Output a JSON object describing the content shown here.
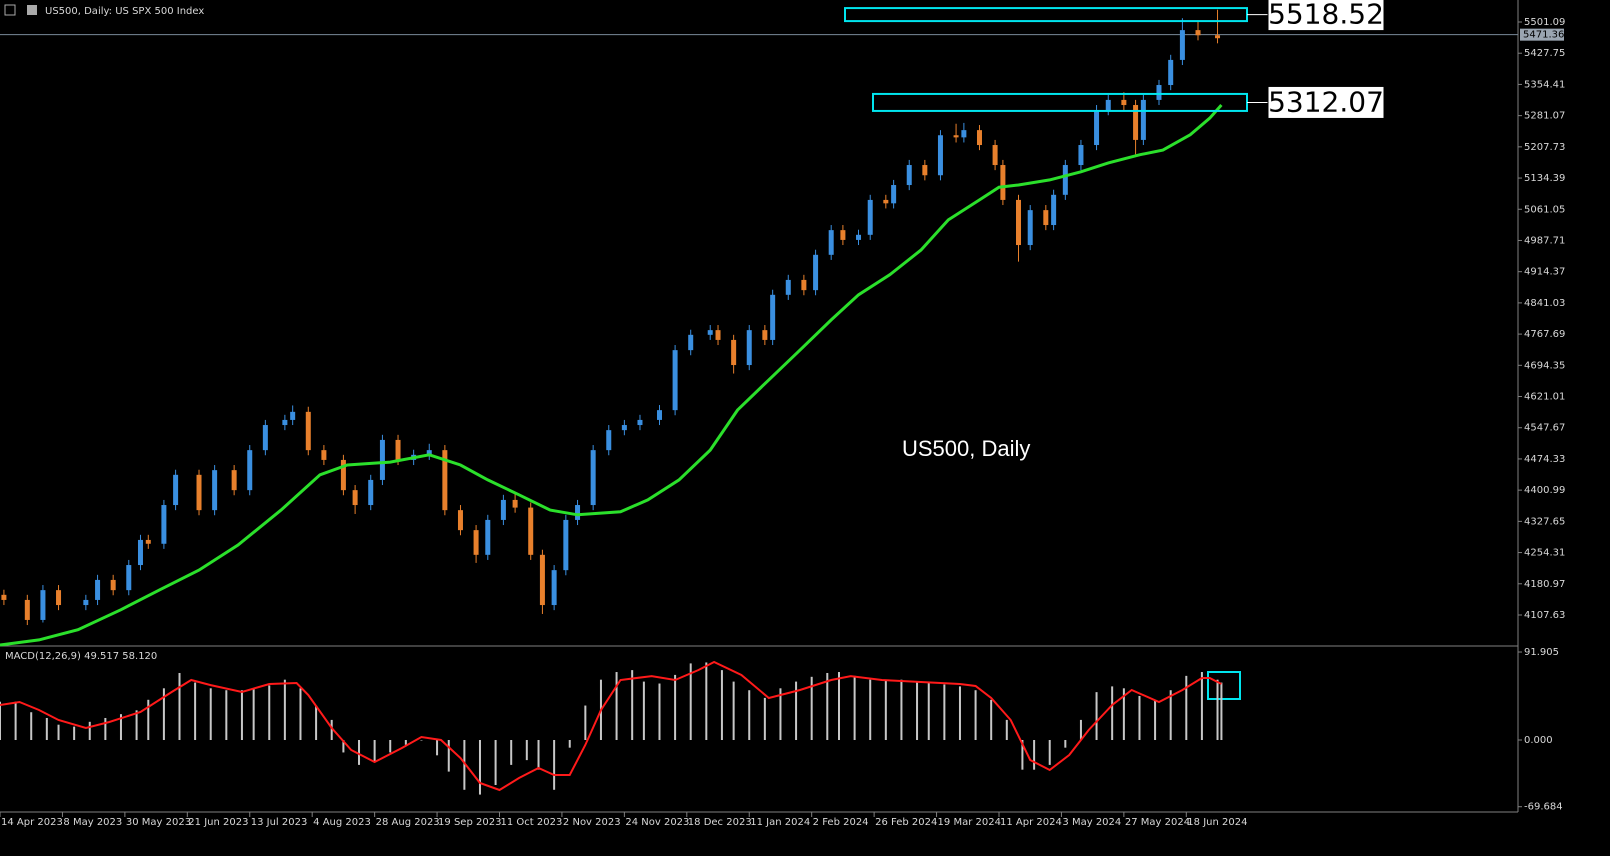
{
  "chart_data": [
    {
      "type": "candlestick",
      "title": "US500, Daily:  US SPX 500 Index",
      "watermark": "US500, Daily",
      "up_color": "#3a8fe0",
      "down_color": "#e8802c",
      "candles": {
        "x": [
          1,
          7,
          11,
          15,
          22,
          25,
          29,
          33,
          36,
          38,
          42,
          45,
          51,
          55,
          60,
          64,
          68,
          73,
          75,
          79,
          83,
          88,
          91,
          95,
          98,
          102,
          106,
          110,
          114,
          118,
          122,
          125,
          129,
          132,
          136,
          139,
          142,
          145,
          148,
          152,
          156,
          160,
          164,
          169,
          173,
          177,
          182,
          184,
          188,
          192,
          196,
          198,
          202,
          206,
          209,
          213,
          216,
          220,
          223,
          227,
          229,
          233,
          237,
          241,
          245,
          247,
          251,
          255,
          257,
          261,
          264,
          268,
          270,
          273,
          277,
          281,
          284,
          288,
          291,
          293,
          297,
          300,
          303,
          307,
          312
        ],
        "open": [
          4155,
          4143,
          4096,
          4166,
          4131,
          4143,
          4190,
          4166,
          4225,
          4284,
          4275,
          4366,
          4437,
          4354,
          4448,
          4401,
          4495,
          4554,
          4566,
          4585,
          4495,
          4472,
          4401,
          4366,
          4425,
          4519,
          4472,
          4484,
          4495,
          4354,
          4307,
          4249,
          4331,
          4378,
          4360,
          4249,
          4131,
          4213,
          4331,
          4366,
          4495,
          4542,
          4554,
          4566,
          4589,
          4730,
          4766,
          4777,
          4754,
          4695,
          4777,
          4754,
          4860,
          4895,
          4871,
          4954,
          5012,
          4989,
          5001,
          5083,
          5075,
          5118,
          5165,
          5141,
          5235,
          5230,
          5247,
          5212,
          5165,
          5083,
          4977,
          5059,
          5024,
          5095,
          5165,
          5212,
          5294,
          5318,
          5306,
          5224,
          5318,
          5353,
          5412,
          5482,
          5470
        ],
        "high": [
          4167,
          4155,
          4178,
          4178,
          4155,
          4202,
          4202,
          4237,
          4296,
          4296,
          4378,
          4449,
          4449,
          4460,
          4460,
          4507,
          4566,
          4578,
          4600,
          4597,
          4507,
          4484,
          4413,
          4437,
          4531,
          4531,
          4496,
          4510,
          4507,
          4366,
          4319,
          4343,
          4390,
          4395,
          4372,
          4261,
          4225,
          4343,
          4378,
          4507,
          4554,
          4566,
          4578,
          4601,
          4742,
          4778,
          4789,
          4789,
          4766,
          4789,
          4789,
          4872,
          4907,
          4907,
          4966,
          5024,
          5024,
          5013,
          5095,
          5095,
          5130,
          5177,
          5177,
          5247,
          5262,
          5264,
          5259,
          5224,
          5177,
          5095,
          5071,
          5071,
          5107,
          5177,
          5224,
          5306,
          5330,
          5336,
          5318,
          5330,
          5365,
          5424,
          5510,
          5505,
          5530
        ],
        "low": [
          4131,
          4084,
          4090,
          4119,
          4119,
          4131,
          4154,
          4154,
          4213,
          4263,
          4263,
          4354,
          4342,
          4342,
          4389,
          4389,
          4483,
          4542,
          4554,
          4483,
          4460,
          4389,
          4345,
          4354,
          4413,
          4460,
          4460,
          4472,
          4342,
          4295,
          4230,
          4237,
          4319,
          4348,
          4237,
          4110,
          4119,
          4201,
          4319,
          4354,
          4483,
          4530,
          4542,
          4554,
          4577,
          4718,
          4754,
          4742,
          4675,
          4683,
          4742,
          4742,
          4848,
          4859,
          4859,
          4942,
          4977,
          4977,
          4989,
          5063,
          5063,
          5106,
          5129,
          5129,
          5218,
          5218,
          5200,
          5153,
          5071,
          4938,
          4965,
          5012,
          5012,
          5083,
          5153,
          5200,
          5282,
          5294,
          5190,
          5212,
          5306,
          5341,
          5400,
          5458,
          5451
        ],
        "close": [
          4143,
          4096,
          4166,
          4131,
          4143,
          4190,
          4166,
          4225,
          4284,
          4275,
          4366,
          4437,
          4354,
          4448,
          4401,
          4495,
          4554,
          4566,
          4585,
          4495,
          4472,
          4401,
          4366,
          4425,
          4519,
          4472,
          4484,
          4495,
          4354,
          4307,
          4249,
          4331,
          4378,
          4360,
          4249,
          4131,
          4213,
          4331,
          4366,
          4495,
          4542,
          4554,
          4566,
          4589,
          4730,
          4766,
          4777,
          4754,
          4695,
          4777,
          4754,
          4860,
          4895,
          4871,
          4954,
          5012,
          4989,
          5001,
          5083,
          5075,
          5118,
          5165,
          5141,
          5235,
          5230,
          5247,
          5212,
          5165,
          5083,
          4977,
          5059,
          5024,
          5095,
          5165,
          5212,
          5294,
          5318,
          5306,
          5224,
          5318,
          5353,
          5412,
          5482,
          5470,
          5463
        ]
      },
      "ma": {
        "color": "#2be02b",
        "x": [
          0,
          10,
          20,
          31,
          41,
          51,
          61,
          72,
          82,
          89,
          100,
          110,
          118,
          125,
          133,
          141,
          148,
          159,
          166,
          174,
          182,
          189,
          197,
          205,
          213,
          220,
          228,
          236,
          243,
          251,
          256,
          261,
          269,
          277,
          284,
          292,
          298,
          305,
          310,
          313
        ],
        "values": [
          4037,
          4049,
          4073,
          4120,
          4167,
          4213,
          4272,
          4354,
          4437,
          4460,
          4467,
          4484,
          4460,
          4425,
          4390,
          4354,
          4343,
          4350,
          4378,
          4425,
          4495,
          4589,
          4660,
          4730,
          4801,
          4860,
          4907,
          4965,
          5036,
          5083,
          5113,
          5118,
          5130,
          5149,
          5170,
          5189,
          5200,
          5236,
          5275,
          5306
        ]
      },
      "levels": [
        5518.52,
        5312.07
      ],
      "level_color": "#00e5ee",
      "last_price": 5471.36,
      "xlim": [
        0,
        389
      ],
      "ylim": [
        4037.1,
        5552.8
      ],
      "yticks": [
        5501.09,
        5427.75,
        5354.41,
        5281.07,
        5207.73,
        5134.39,
        5061.05,
        4987.71,
        4914.37,
        4841.03,
        4767.69,
        4694.35,
        4621.01,
        4547.67,
        4474.33,
        4400.99,
        4327.65,
        4254.31,
        4180.97,
        4107.63
      ],
      "xticks": [
        {
          "value": 0,
          "label": "14 Apr 2023"
        },
        {
          "value": 16,
          "label": "8 May 2023"
        },
        {
          "value": 32,
          "label": "30 May 2023"
        },
        {
          "value": 48,
          "label": "21 Jun 2023"
        },
        {
          "value": 64,
          "label": "13 Jul 2023"
        },
        {
          "value": 80,
          "label": "4 Aug 2023"
        },
        {
          "value": 96,
          "label": "28 Aug 2023"
        },
        {
          "value": 112,
          "label": "19 Sep 2023"
        },
        {
          "value": 128,
          "label": "11 Oct 2023"
        },
        {
          "value": 144,
          "label": "2 Nov 2023"
        },
        {
          "value": 160,
          "label": "24 Nov 2023"
        },
        {
          "value": 176,
          "label": "18 Dec 2023"
        },
        {
          "value": 192,
          "label": "11 Jan 2024"
        },
        {
          "value": 208,
          "label": "2 Feb 2024"
        },
        {
          "value": 224,
          "label": "26 Feb 2024"
        },
        {
          "value": 240,
          "label": "19 Mar 2024"
        },
        {
          "value": 256,
          "label": "11 Apr 2024"
        },
        {
          "value": 272,
          "label": "3 May 2024"
        },
        {
          "value": 288,
          "label": "27 May 2024"
        },
        {
          "value": 304,
          "label": "18 Jun 2024"
        }
      ]
    },
    {
      "type": "macd",
      "title": "MACD(12,26,9) 49.517 58.120",
      "hist": {
        "color": "#c8c8c8",
        "x": [
          0,
          4,
          8,
          12,
          15,
          19,
          23,
          27,
          31,
          35,
          38,
          42,
          46,
          50,
          54,
          58,
          62,
          65,
          69,
          73,
          77,
          81,
          85,
          88,
          92,
          96,
          100,
          104,
          108,
          112,
          115,
          119,
          123,
          127,
          131,
          135,
          138,
          142,
          146,
          150,
          154,
          158,
          162,
          165,
          169,
          173,
          177,
          181,
          185,
          188,
          192,
          196,
          200,
          204,
          208,
          212,
          215,
          219,
          223,
          227,
          231,
          235,
          238,
          242,
          246,
          250,
          254,
          258,
          262,
          265,
          269,
          273,
          277,
          281,
          285,
          288,
          292,
          296,
          300,
          304,
          308,
          312,
          313
        ],
        "values": [
          40,
          40,
          29,
          23,
          16,
          14,
          19,
          23,
          27,
          31,
          42,
          54,
          70,
          60,
          54,
          52,
          52,
          54,
          57,
          63,
          54,
          36,
          21,
          -13,
          -26,
          -23,
          -13,
          -5,
          0,
          -16,
          -33,
          -52,
          -57,
          -47,
          -26,
          -21,
          -31,
          -52,
          -8,
          36,
          63,
          71,
          73,
          61,
          59,
          68,
          80,
          81,
          73,
          61,
          52,
          44,
          54,
          61,
          66,
          70,
          71,
          67,
          63,
          63,
          63,
          61,
          61,
          58,
          56,
          52,
          42,
          21,
          -31,
          -31,
          -26,
          -8,
          21,
          50,
          56,
          54,
          46,
          42,
          52,
          67,
          71,
          63,
          60
        ]
      },
      "signal": {
        "color": "#ff1a1a",
        "x": [
          0,
          5,
          10,
          15,
          22,
          28,
          36,
          44,
          49,
          54,
          62,
          69,
          76,
          79,
          85,
          90,
          96,
          103,
          108,
          113,
          118,
          123,
          128,
          133,
          138,
          142,
          146,
          150,
          154,
          159,
          167,
          173,
          179,
          183,
          190,
          197,
          205,
          213,
          218,
          226,
          236,
          246,
          250,
          254,
          259,
          264,
          269,
          274,
          279,
          285,
          290,
          297,
          303,
          308,
          310,
          313
        ],
        "values": [
          36.6,
          39.7,
          31.3,
          20.9,
          12.5,
          18.8,
          29.2,
          50.1,
          62.7,
          57.4,
          50.1,
          58.5,
          59.5,
          47,
          12.5,
          -10.4,
          -23,
          -8.4,
          3.1,
          0,
          -18.8,
          -44.9,
          -52.2,
          -39.7,
          -29.2,
          -36.6,
          -36.6,
          -5.2,
          31.3,
          62.7,
          66.8,
          62.7,
          73.1,
          81.5,
          67.9,
          43.9,
          52.2,
          62.7,
          66.8,
          62.7,
          60.6,
          58.5,
          56.4,
          43.9,
          20.9,
          -20.9,
          -31.3,
          -15.7,
          10.4,
          36.6,
          52.2,
          39.7,
          52.2,
          64.8,
          64.8,
          58.5
        ]
      },
      "ylim": [
        -75.2,
        96.1
      ],
      "yticks": [
        {
          "value": 91.905,
          "label": "91.905"
        },
        {
          "value": 0,
          "label": "0.000"
        },
        {
          "value": -69.684,
          "label": "-69.684"
        }
      ]
    }
  ]
}
